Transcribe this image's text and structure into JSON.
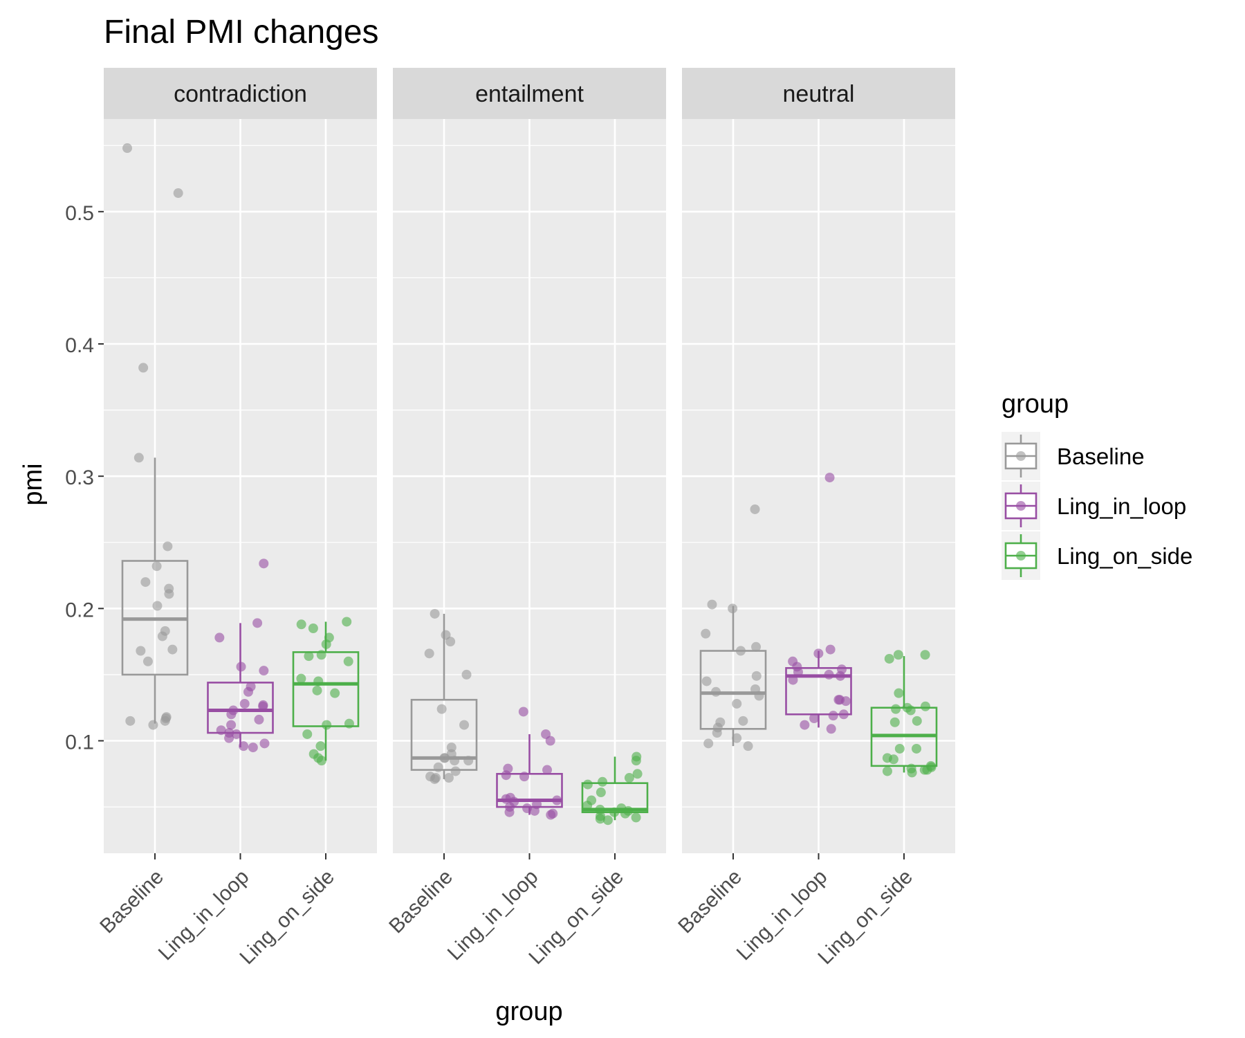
{
  "chart_data": {
    "type": "box",
    "title": "Final PMI changes",
    "xlabel": "group",
    "ylabel": "pmi",
    "ylim": [
      0.015,
      0.57
    ],
    "yticks": [
      0.1,
      0.2,
      0.3,
      0.4,
      0.5
    ],
    "ytick_labels": [
      "0.1",
      "0.2",
      "0.3",
      "0.4",
      "0.5"
    ],
    "grid": true,
    "categories": [
      "Baseline",
      "Ling_in_loop",
      "Ling_on_side"
    ],
    "legend": {
      "title": "group",
      "position": "right",
      "entries": [
        "Baseline",
        "Ling_in_loop",
        "Ling_on_side"
      ]
    },
    "colors": {
      "Baseline": "#999999",
      "Ling_in_loop": "#984ea3",
      "Ling_on_side": "#4daf4a"
    },
    "panels": [
      {
        "name": "contradiction",
        "boxes": [
          {
            "group": "Baseline",
            "whisker_low": 0.113,
            "q1": 0.15,
            "median": 0.192,
            "q3": 0.236,
            "whisker_high": 0.314,
            "points": [
              0.548,
              0.514,
              0.382,
              0.314,
              0.247,
              0.232,
              0.22,
              0.215,
              0.211,
              0.202,
              0.183,
              0.179,
              0.169,
              0.168,
              0.16,
              0.118,
              0.117,
              0.115,
              0.115,
              0.112
            ]
          },
          {
            "group": "Ling_in_loop",
            "whisker_low": 0.095,
            "q1": 0.106,
            "median": 0.123,
            "q3": 0.144,
            "whisker_high": 0.189,
            "points": [
              0.234,
              0.189,
              0.178,
              0.156,
              0.153,
              0.141,
              0.137,
              0.128,
              0.127,
              0.126,
              0.123,
              0.12,
              0.116,
              0.112,
              0.108,
              0.106,
              0.105,
              0.102,
              0.098,
              0.096,
              0.095
            ]
          },
          {
            "group": "Ling_on_side",
            "whisker_low": 0.085,
            "q1": 0.111,
            "median": 0.143,
            "q3": 0.167,
            "whisker_high": 0.19,
            "points": [
              0.19,
              0.188,
              0.185,
              0.178,
              0.173,
              0.165,
              0.164,
              0.16,
              0.147,
              0.145,
              0.138,
              0.136,
              0.113,
              0.112,
              0.105,
              0.096,
              0.09,
              0.087,
              0.085
            ]
          }
        ]
      },
      {
        "name": "entailment",
        "boxes": [
          {
            "group": "Baseline",
            "whisker_low": 0.071,
            "q1": 0.078,
            "median": 0.087,
            "q3": 0.131,
            "whisker_high": 0.196,
            "points": [
              0.196,
              0.18,
              0.175,
              0.166,
              0.15,
              0.124,
              0.112,
              0.095,
              0.09,
              0.087,
              0.087,
              0.085,
              0.085,
              0.08,
              0.077,
              0.073,
              0.072,
              0.072,
              0.071
            ]
          },
          {
            "group": "Ling_in_loop",
            "whisker_low": 0.044,
            "q1": 0.05,
            "median": 0.055,
            "q3": 0.075,
            "whisker_high": 0.105,
            "points": [
              0.122,
              0.105,
              0.1,
              0.079,
              0.078,
              0.074,
              0.073,
              0.057,
              0.056,
              0.055,
              0.054,
              0.052,
              0.05,
              0.049,
              0.047,
              0.046,
              0.045,
              0.044
            ]
          },
          {
            "group": "Ling_on_side",
            "whisker_low": 0.04,
            "q1": 0.046,
            "median": 0.048,
            "q3": 0.068,
            "whisker_high": 0.088,
            "points": [
              0.088,
              0.085,
              0.075,
              0.072,
              0.069,
              0.067,
              0.061,
              0.055,
              0.051,
              0.049,
              0.048,
              0.047,
              0.046,
              0.045,
              0.043,
              0.042,
              0.041,
              0.04
            ]
          }
        ]
      },
      {
        "name": "neutral",
        "boxes": [
          {
            "group": "Baseline",
            "whisker_low": 0.096,
            "q1": 0.109,
            "median": 0.136,
            "q3": 0.168,
            "whisker_high": 0.202,
            "points": [
              0.275,
              0.203,
              0.2,
              0.181,
              0.171,
              0.168,
              0.149,
              0.145,
              0.139,
              0.137,
              0.134,
              0.128,
              0.115,
              0.114,
              0.11,
              0.106,
              0.102,
              0.098,
              0.096
            ]
          },
          {
            "group": "Ling_in_loop",
            "whisker_low": 0.11,
            "q1": 0.12,
            "median": 0.149,
            "q3": 0.155,
            "whisker_high": 0.168,
            "points": [
              0.299,
              0.169,
              0.166,
              0.16,
              0.156,
              0.154,
              0.152,
              0.15,
              0.149,
              0.146,
              0.131,
              0.131,
              0.13,
              0.12,
              0.119,
              0.117,
              0.112,
              0.109
            ]
          },
          {
            "group": "Ling_on_side",
            "whisker_low": 0.076,
            "q1": 0.081,
            "median": 0.104,
            "q3": 0.125,
            "whisker_high": 0.164,
            "points": [
              0.165,
              0.165,
              0.162,
              0.136,
              0.126,
              0.125,
              0.124,
              0.123,
              0.115,
              0.114,
              0.094,
              0.094,
              0.087,
              0.086,
              0.081,
              0.08,
              0.079,
              0.078,
              0.078,
              0.077,
              0.076
            ]
          }
        ]
      }
    ]
  }
}
